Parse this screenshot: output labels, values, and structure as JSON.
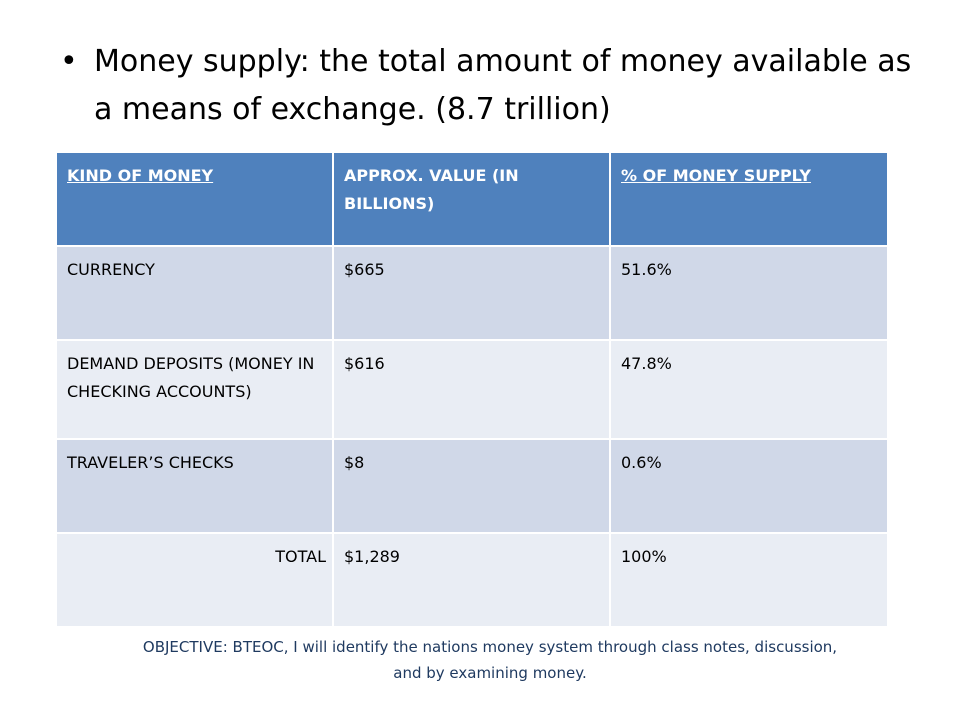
{
  "bullet": {
    "text": "Money supply:  the total amount of money available as a means of exchange.  (8.7 trillion)"
  },
  "table": {
    "headers": [
      "KIND OF MONEY",
      "APPROX. VALUE (IN BILLIONS)",
      "% OF MONEY SUPPLY"
    ],
    "rows": [
      [
        "CURRENCY",
        "$665",
        "51.6%"
      ],
      [
        "DEMAND DEPOSITS (MONEY IN CHECKING ACCOUNTS)",
        "$616",
        "47.8%"
      ],
      [
        "TRAVELER’S CHECKS",
        "$8",
        "0.6%"
      ],
      [
        "TOTAL",
        "$1,289",
        "100%"
      ]
    ]
  },
  "objective": {
    "text": "OBJECTIVE:  BTEOC, I will identify the nations money system through class notes, discussion, and by examining money."
  },
  "colors": {
    "header_bg": "#4f81bd",
    "row_dark": "#d0d8e8",
    "row_light": "#e9edf4",
    "objective_text": "#1f3a60"
  }
}
